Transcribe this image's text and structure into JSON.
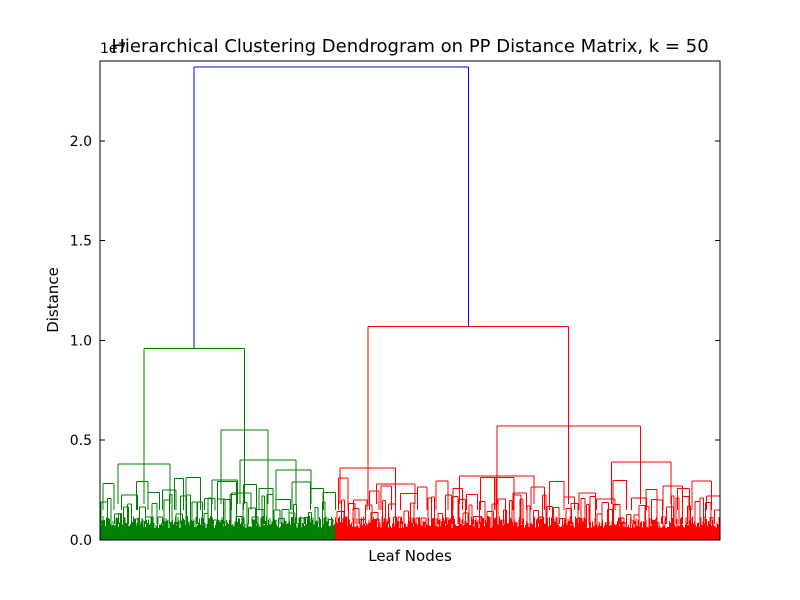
{
  "chart_data": {
    "type": "dendrogram",
    "title": "Hierarchical Clustering Dendrogram on PP Distance Matrix, k = 50",
    "xlabel": "Leaf Nodes",
    "ylabel": "Distance",
    "y_offset_label": "1e7",
    "ylim": [
      0,
      2.4
    ],
    "yticks": [
      {
        "value": 0.0,
        "label": "0.0"
      },
      {
        "value": 0.5,
        "label": "0.5"
      },
      {
        "value": 1.0,
        "label": "1.0"
      },
      {
        "value": 1.5,
        "label": "1.5"
      },
      {
        "value": 2.0,
        "label": "2.0"
      }
    ],
    "leaf_range": [
      0,
      1000
    ],
    "colors": {
      "top": "#0000ff",
      "cluster_a": "#008000",
      "cluster_b": "#ff0000"
    },
    "top_merge": {
      "height": 2.37,
      "left_x": 152,
      "right_x": 594
    },
    "clusters": [
      {
        "name": "cluster-a",
        "color": "#008000",
        "leaf_range": [
          0,
          380
        ],
        "merges": [
          {
            "height": 0.96,
            "left_x": 71,
            "right_x": 233
          },
          {
            "height": 0.55,
            "left_x": 195,
            "right_x": 271
          },
          {
            "height": 0.38,
            "left_x": 29,
            "right_x": 113
          },
          {
            "height": 0.4,
            "left_x": 226,
            "right_x": 316
          },
          {
            "height": 0.35,
            "left_x": 284,
            "right_x": 340
          },
          {
            "height": 0.3,
            "left_x": 181,
            "right_x": 222
          }
        ],
        "base_level": 0.18
      },
      {
        "name": "cluster-b",
        "color": "#ff0000",
        "leaf_range": [
          380,
          1000
        ],
        "merges": [
          {
            "height": 1.07,
            "left_x": 432,
            "right_x": 756
          },
          {
            "height": 0.57,
            "left_x": 640,
            "right_x": 872
          },
          {
            "height": 0.36,
            "left_x": 387,
            "right_x": 477
          },
          {
            "height": 0.39,
            "left_x": 825,
            "right_x": 921
          },
          {
            "height": 0.32,
            "left_x": 580,
            "right_x": 700
          },
          {
            "height": 0.28,
            "left_x": 446,
            "right_x": 508
          }
        ],
        "base_level": 0.18
      }
    ]
  }
}
